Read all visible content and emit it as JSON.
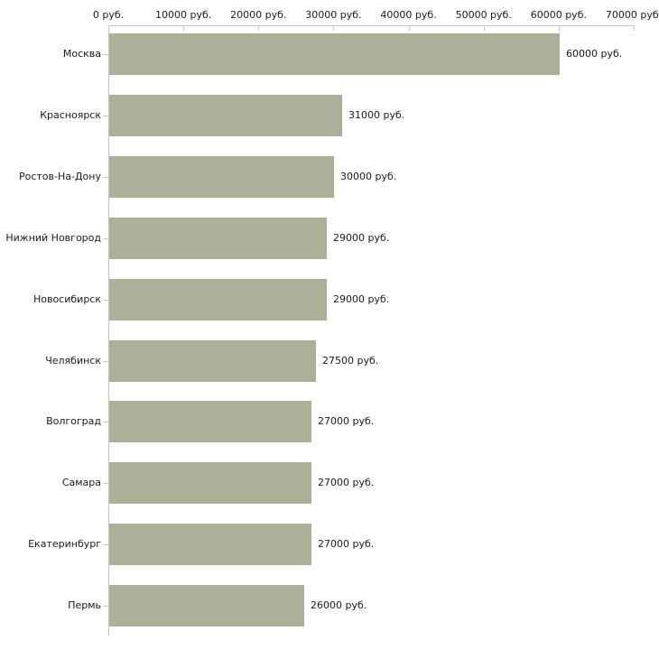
{
  "chart_data": {
    "type": "bar",
    "orientation": "horizontal",
    "title": "",
    "xlabel": "",
    "ylabel": "",
    "grid": false,
    "legend": null,
    "categories": [
      "Москва",
      "Красноярск",
      "Ростов-На-Дону",
      "Нижний Новгород",
      "Новосибирск",
      "Челябинск",
      "Волгоград",
      "Самара",
      "Екатеринбург",
      "Пермь"
    ],
    "values": [
      60000,
      31000,
      30000,
      29000,
      29000,
      27500,
      27000,
      27000,
      27000,
      26000
    ],
    "value_labels": [
      "60000 руб.",
      "31000 руб.",
      "30000 руб.",
      "29000 руб.",
      "29000 руб.",
      "27500 руб.",
      "27000 руб.",
      "27000 руб.",
      "27000 руб.",
      "26000 руб."
    ],
    "x_ticks": [
      0,
      10000,
      20000,
      30000,
      40000,
      50000,
      60000,
      70000
    ],
    "x_tick_labels": [
      "0 руб.",
      "10000 руб.",
      "20000 руб.",
      "30000 руб.",
      "40000 руб.",
      "50000 руб.",
      "60000 руб.",
      "70000 руб."
    ],
    "xlim": [
      0,
      70000
    ],
    "colors": {
      "bar": "#abb098",
      "axis": "#c5c5c5",
      "tick": "#cfcc9f",
      "text": "#1a1a1a"
    }
  }
}
